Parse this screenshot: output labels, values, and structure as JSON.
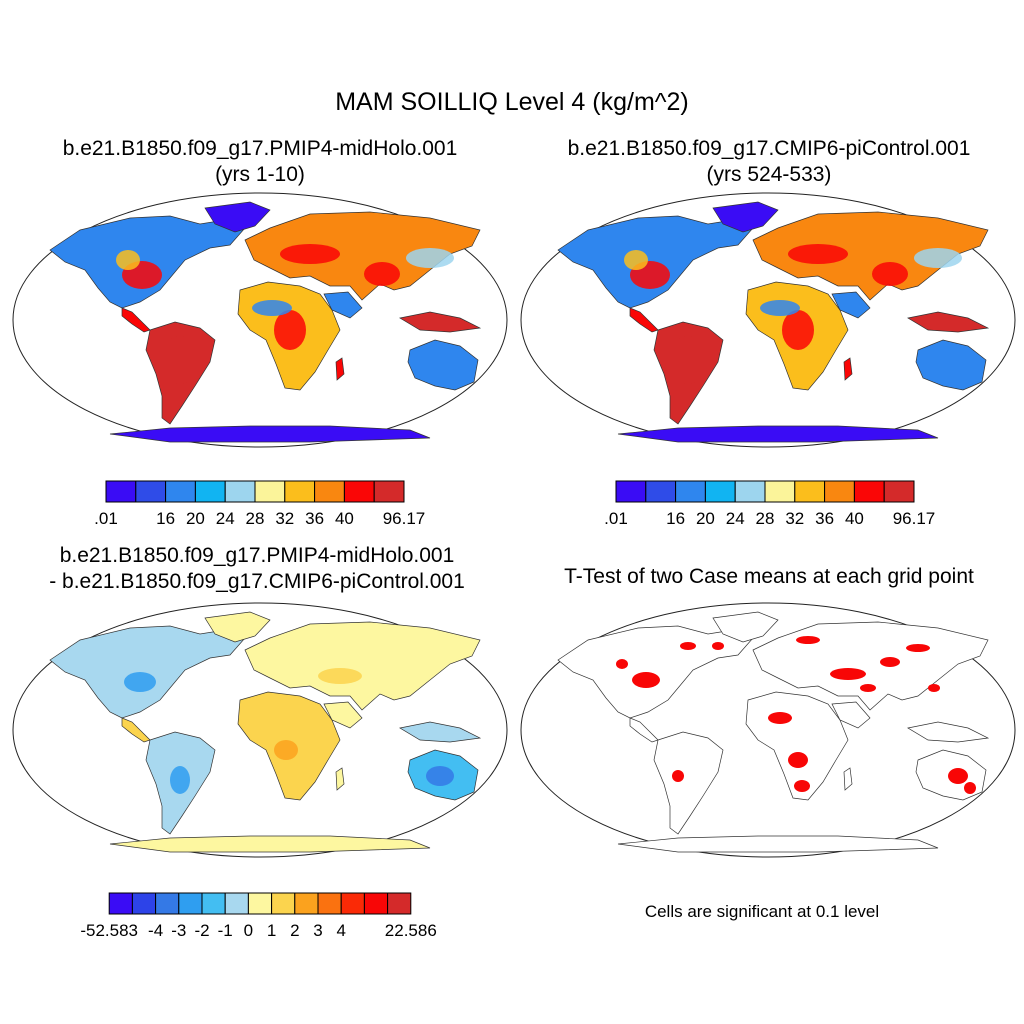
{
  "figure_title": "MAM SOILLIQ Level 4 (kg/m^2)",
  "panels": [
    {
      "id": "p1",
      "title_line1": "b.e21.B1850.f09_g17.PMIP4-midHolo.001",
      "title_line2": "(yrs 1-10)",
      "content": "soil liquid water field"
    },
    {
      "id": "p2",
      "title_line1": "b.e21.B1850.f09_g17.CMIP6-piControl.001",
      "title_line2": "(yrs 524-533)",
      "content": "soil liquid water field"
    },
    {
      "id": "p3",
      "title_line1": "b.e21.B1850.f09_g17.PMIP4-midHolo.001",
      "title_line2": "- b.e21.B1850.f09_g17.CMIP6-piControl.001",
      "content": "difference field"
    },
    {
      "id": "p4",
      "title_line1": "T-Test of two Case means at each grid point",
      "title_line2": "",
      "content": "significance mask"
    }
  ],
  "colorbars": {
    "fields": {
      "colors": [
        "#3a0cf5",
        "#2f4ce8",
        "#2f86ee",
        "#11b4f2",
        "#9dd5ee",
        "#fbf49a",
        "#fbbe1c",
        "#f98710",
        "#fa0606",
        "#d42a2a"
      ],
      "labels": [
        ".01",
        "16",
        "20",
        "24",
        "28",
        "32",
        "36",
        "40",
        "96.17"
      ],
      "label_after_box": [
        0,
        2,
        3,
        4,
        5,
        6,
        7,
        8,
        10
      ]
    },
    "difference": {
      "colors": [
        "#3a0cf5",
        "#2d43e8",
        "#3479e6",
        "#2f9ef0",
        "#43bef2",
        "#a8d8ef",
        "#fdf7a0",
        "#fbd44e",
        "#fba21e",
        "#fa7210",
        "#fa2a06",
        "#f80606",
        "#d42a2a"
      ],
      "labels": [
        "-52.583",
        "-4",
        "-3",
        "-2",
        "-1",
        "0",
        "1",
        "2",
        "3",
        "4",
        "22.586"
      ],
      "label_after_box": [
        0,
        2,
        3,
        4,
        5,
        6,
        7,
        8,
        9,
        10,
        13
      ]
    }
  },
  "significance": {
    "note": "Cells are significant at 0.1 level",
    "color": "#f80606"
  }
}
